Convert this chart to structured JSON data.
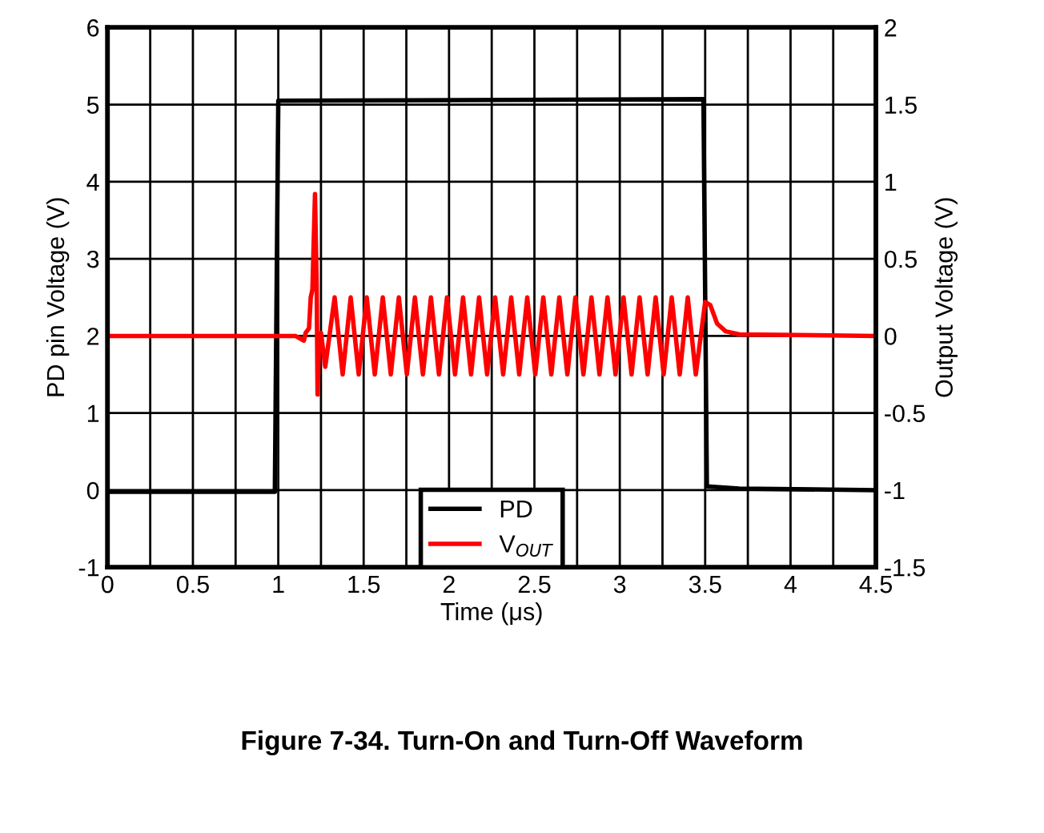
{
  "chart_data": {
    "type": "line",
    "title": "Figure 7-34. Turn-On and Turn-Off Waveform",
    "xlabel": "Time (μs)",
    "ylabel": "PD pin Voltage (V)",
    "y2label": "Output Voltage (V)",
    "xlim": [
      0,
      4.5
    ],
    "xticks": [
      0,
      {
        "value": 0.25,
        "label": null
      },
      0.5,
      {
        "value": 0.75,
        "label": null
      },
      1,
      {
        "value": 1.25,
        "label": null
      },
      1.5,
      {
        "value": 1.75,
        "label": null
      },
      2,
      {
        "value": 2.25,
        "label": null
      },
      2.5,
      {
        "value": 2.75,
        "label": null
      },
      3,
      {
        "value": 3.25,
        "label": null
      },
      3.5,
      {
        "value": 3.75,
        "label": null
      },
      4,
      {
        "value": 4.25,
        "label": null
      },
      4.5
    ],
    "ylim": [
      -1,
      6
    ],
    "yticks": [
      -1,
      0,
      1,
      2,
      3,
      4,
      5,
      6
    ],
    "y2lim": [
      -1.5,
      2
    ],
    "y2ticks": [
      -1.5,
      -1,
      -0.5,
      0,
      0.5,
      1,
      1.5,
      2
    ],
    "grid": true,
    "legend": "bottom",
    "line_style": "solid",
    "marker": "none",
    "series": [
      {
        "name": "PD",
        "color": "#000000",
        "x": [
          0,
          0.98,
          1.0,
          3.49,
          3.51,
          3.7,
          4.5
        ],
        "values": [
          -0.02,
          -0.02,
          5.05,
          5.07,
          0.05,
          0.02,
          0.0
        ]
      },
      {
        "name": "V$_{OUT}$",
        "color": "#ff0000",
        "axis": "y2",
        "x": [
          0,
          1.1,
          1.15,
          1.16,
          1.18,
          1.19,
          1.2,
          1.215,
          1.225,
          1.23,
          1.24,
          1.25,
          1.275,
          1.33,
          1.377,
          1.424,
          1.471,
          1.518,
          1.565,
          1.612,
          1.659,
          1.706,
          1.753,
          1.8,
          1.847,
          1.894,
          1.941,
          1.988,
          2.035,
          2.082,
          2.129,
          2.176,
          2.223,
          2.27,
          2.317,
          2.364,
          2.411,
          2.458,
          2.505,
          2.552,
          2.599,
          2.646,
          2.693,
          2.74,
          2.787,
          2.834,
          2.881,
          2.928,
          2.975,
          3.022,
          3.069,
          3.116,
          3.163,
          3.21,
          3.257,
          3.304,
          3.351,
          3.398,
          3.445,
          3.5,
          3.53,
          3.57,
          3.62,
          3.7,
          4.5
        ],
        "values": [
          0,
          0,
          -0.03,
          0.02,
          0.05,
          0.25,
          0.3,
          0.92,
          0.3,
          -0.38,
          0,
          0.02,
          -0.2,
          0.25,
          -0.25,
          0.25,
          -0.25,
          0.25,
          -0.25,
          0.25,
          -0.25,
          0.25,
          -0.25,
          0.25,
          -0.25,
          0.25,
          -0.25,
          0.25,
          -0.25,
          0.25,
          -0.25,
          0.25,
          -0.25,
          0.25,
          -0.25,
          0.25,
          -0.25,
          0.25,
          -0.25,
          0.25,
          -0.25,
          0.25,
          -0.25,
          0.25,
          -0.25,
          0.25,
          -0.25,
          0.25,
          -0.25,
          0.25,
          -0.25,
          0.25,
          -0.25,
          0.25,
          -0.25,
          0.25,
          -0.25,
          0.25,
          -0.25,
          0.22,
          0.2,
          0.08,
          0.03,
          0.01,
          0
        ]
      }
    ]
  }
}
